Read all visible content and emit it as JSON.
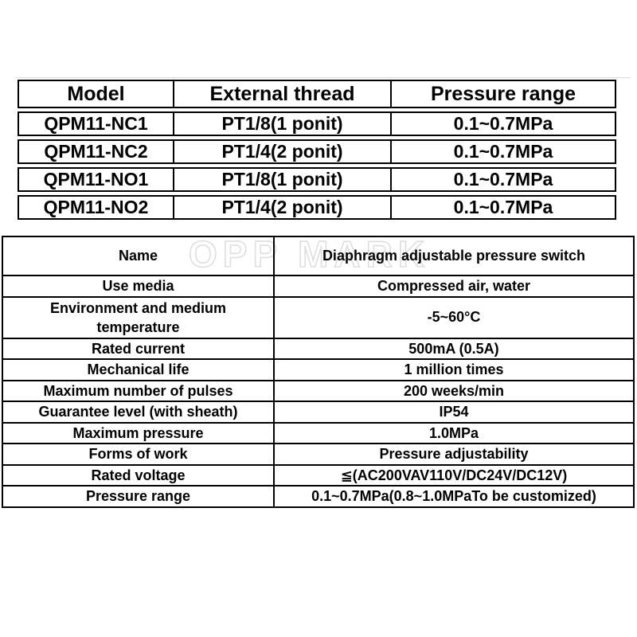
{
  "watermark": {
    "text": "OPP MARK",
    "stroke_color": "#d9d9d9"
  },
  "model_table": {
    "headers": [
      "Model",
      "External thread",
      "Pressure range"
    ],
    "rows": [
      [
        "QPM11-NC1",
        "PT1/8(1 ponit)",
        "0.1~0.7MPa"
      ],
      [
        "QPM11-NC2",
        "PT1/4(2 ponit)",
        "0.1~0.7MPa"
      ],
      [
        "QPM11-NO1",
        "PT1/8(1 ponit)",
        "0.1~0.7MPa"
      ],
      [
        "QPM11-NO2",
        "PT1/4(2 ponit)",
        "0.1~0.7MPa"
      ]
    ]
  },
  "spec_table": {
    "rows": [
      {
        "label": "Name",
        "value": "Diaphragm adjustable pressure switch"
      },
      {
        "label": "Use media",
        "value": "Compressed air, water"
      },
      {
        "label": "Environment and medium temperature",
        "value": "-5~60°C"
      },
      {
        "label": "Rated current",
        "value": "500mA (0.5A)"
      },
      {
        "label": "Mechanical life",
        "value": "1 million times"
      },
      {
        "label": "Maximum number of pulses",
        "value": "200 weeks/min"
      },
      {
        "label": "Guarantee level (with sheath)",
        "value": "IP54"
      },
      {
        "label": "Maximum pressure",
        "value": "1.0MPa"
      },
      {
        "label": "Forms of work",
        "value": "Pressure adjustability"
      },
      {
        "label": "Rated voltage",
        "value": "≦(AC200VAV110V/DC24V/DC12V)"
      },
      {
        "label": "Pressure range",
        "value": "0.1~0.7MPa(0.8~1.0MPaTo be customized)"
      }
    ]
  },
  "colors": {
    "border": "#000000",
    "background": "#ffffff",
    "hairline": "#dcdcdc"
  }
}
